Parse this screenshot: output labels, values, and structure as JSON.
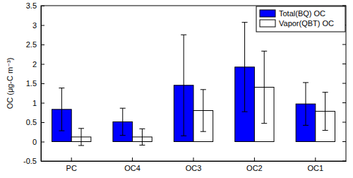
{
  "chart_data": {
    "type": "bar",
    "y_label": "OC (μg-C m⁻³)",
    "categories": [
      "PC",
      "OC4",
      "OC3",
      "OC2",
      "OC1"
    ],
    "series": [
      {
        "name": "Total(BQ) OC",
        "color": "#0000ff",
        "values": [
          0.83,
          0.51,
          1.45,
          1.92,
          0.97
        ],
        "errors": [
          0.55,
          0.35,
          1.3,
          1.15,
          0.55
        ]
      },
      {
        "name": "Vapor(QBT) OC",
        "color": "#ffffff",
        "values": [
          0.12,
          0.12,
          0.8,
          1.4,
          0.78
        ],
        "errors": [
          0.22,
          0.21,
          0.54,
          0.93,
          0.49
        ]
      }
    ],
    "ylim": [
      -0.5,
      3.5
    ],
    "yticks": [
      -0.5,
      0,
      0.5,
      1,
      1.5,
      2,
      2.5,
      3,
      3.5
    ],
    "legend": "northeast"
  }
}
